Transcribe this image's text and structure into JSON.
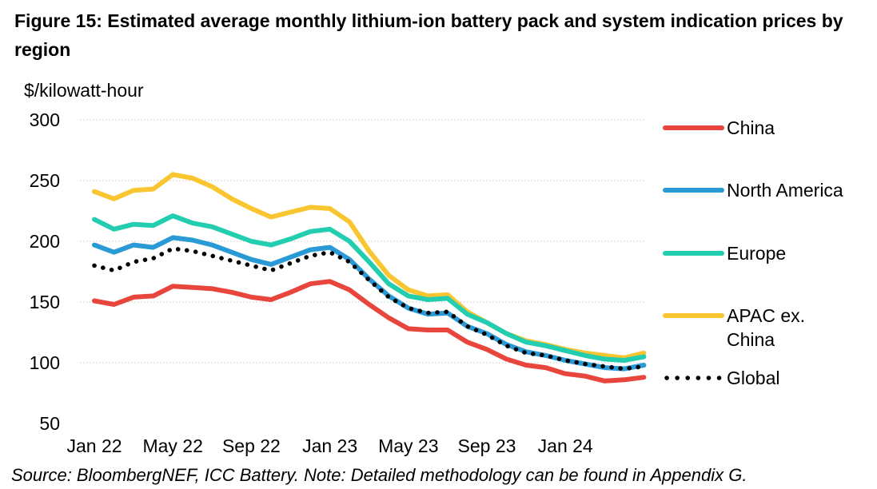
{
  "title": "Figure 15: Estimated average monthly lithium-ion battery pack and system indication prices by region",
  "source": "Source: BloombergNEF, ICC Battery. Note: Detailed methodology can be found in Appendix G.",
  "chart_data": {
    "type": "line",
    "ylabel": "$/kilowatt-hour",
    "xlabel": "",
    "ylim": [
      50,
      300
    ],
    "yticks": [
      300,
      250,
      200,
      150,
      100,
      50
    ],
    "grid": "horizontal dotted",
    "legend_position": "right",
    "x_tick_labels": [
      "Jan 22",
      "May 22",
      "Sep 22",
      "Jan 23",
      "May 23",
      "Sep 23",
      "Jan 24"
    ],
    "x_tick_indices": [
      0,
      4,
      8,
      12,
      16,
      20,
      24
    ],
    "x": [
      "Jan 22",
      "Feb 22",
      "Mar 22",
      "Apr 22",
      "May 22",
      "Jun 22",
      "Jul 22",
      "Aug 22",
      "Sep 22",
      "Oct 22",
      "Nov 22",
      "Dec 22",
      "Jan 23",
      "Feb 23",
      "Mar 23",
      "Apr 23",
      "May 23",
      "Jun 23",
      "Jul 23",
      "Aug 23",
      "Sep 23",
      "Oct 23",
      "Nov 23",
      "Dec 23",
      "Jan 24",
      "Feb 24",
      "Mar 24",
      "Apr 24",
      "May 24"
    ],
    "series": [
      {
        "name": "China",
        "color": "#e8453c",
        "style": "solid",
        "values": [
          151,
          148,
          154,
          155,
          163,
          162,
          161,
          158,
          154,
          152,
          158,
          165,
          167,
          160,
          148,
          137,
          128,
          127,
          127,
          117,
          111,
          103,
          98,
          96,
          91,
          89,
          85,
          86,
          88
        ]
      },
      {
        "name": "North America",
        "color": "#2a9ad6",
        "style": "solid",
        "values": [
          197,
          191,
          197,
          195,
          203,
          201,
          197,
          191,
          185,
          181,
          187,
          193,
          195,
          185,
          169,
          155,
          145,
          140,
          141,
          130,
          124,
          115,
          109,
          106,
          102,
          99,
          96,
          95,
          98
        ]
      },
      {
        "name": "Europe",
        "color": "#22cdb0",
        "style": "solid",
        "values": [
          218,
          210,
          214,
          213,
          221,
          215,
          212,
          206,
          200,
          197,
          202,
          208,
          210,
          200,
          183,
          165,
          155,
          152,
          153,
          140,
          133,
          124,
          117,
          114,
          110,
          106,
          103,
          102,
          105
        ]
      },
      {
        "name": "APAC ex. China",
        "legend_lines": [
          "APAC ex.",
          "China"
        ],
        "color": "#f9c631",
        "style": "solid",
        "values": [
          241,
          235,
          242,
          243,
          255,
          252,
          245,
          235,
          227,
          220,
          224,
          228,
          227,
          216,
          192,
          172,
          160,
          155,
          156,
          142,
          133,
          124,
          118,
          115,
          111,
          108,
          106,
          104,
          108
        ]
      },
      {
        "name": "Global",
        "color": "#000000",
        "style": "dotted",
        "values": [
          180,
          176,
          183,
          186,
          194,
          192,
          188,
          184,
          180,
          176,
          182,
          188,
          191,
          183,
          168,
          154,
          145,
          141,
          142,
          130,
          123,
          114,
          108,
          106,
          102,
          99,
          97,
          95,
          97
        ]
      }
    ]
  }
}
